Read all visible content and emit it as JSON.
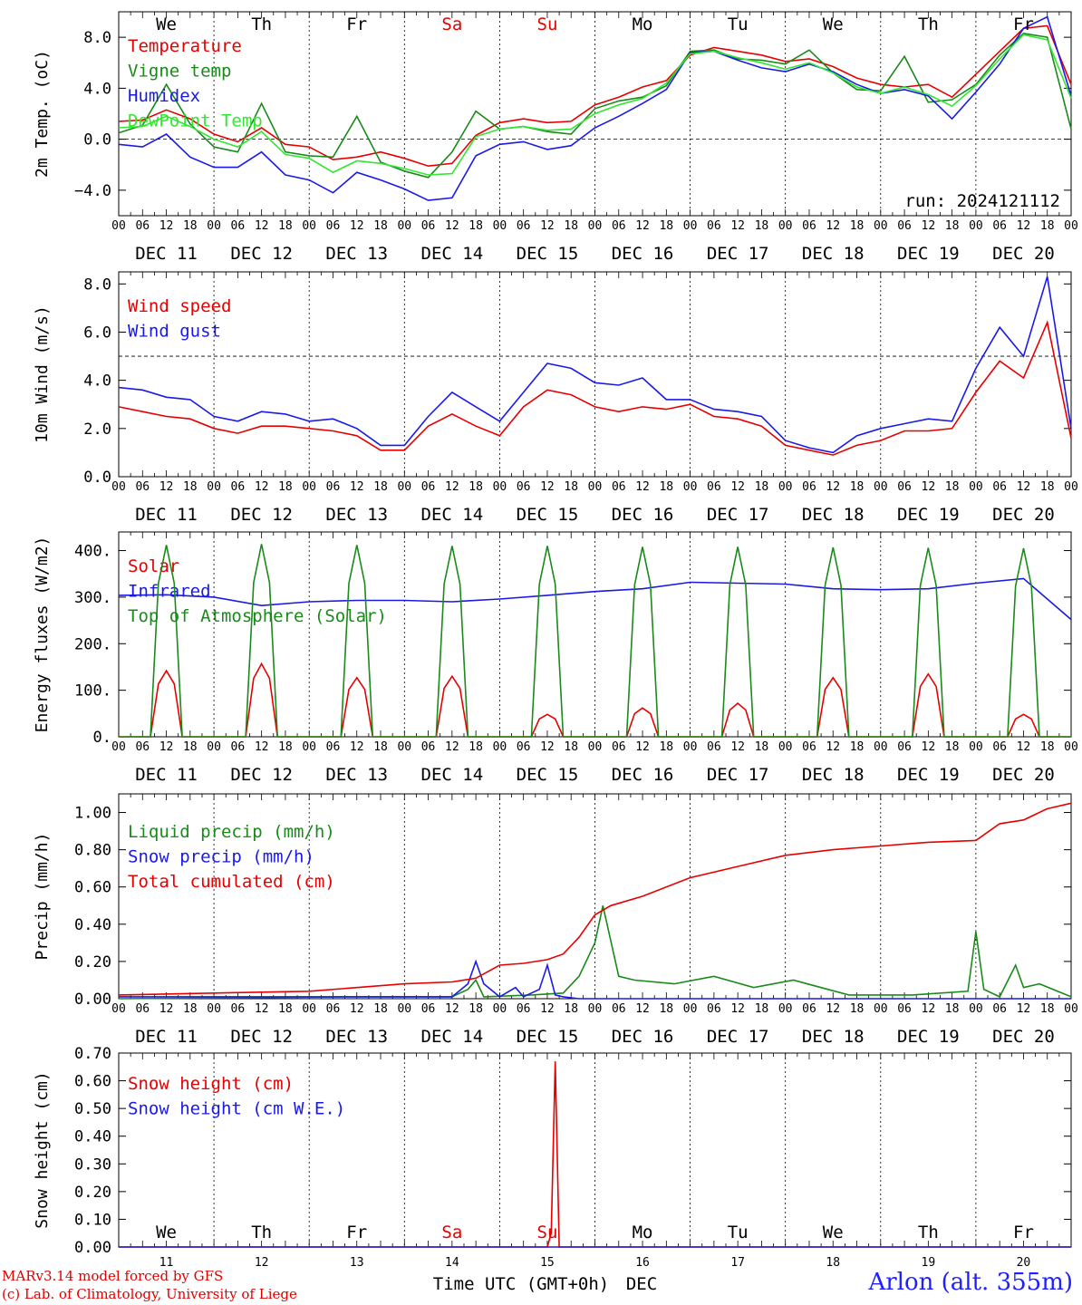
{
  "credits": {
    "model": "MARv3.14 model forced by GFS",
    "lab": "(c) Lab. of Climatology, University of Liege"
  },
  "station": "Arlon (alt. 355m)",
  "colors": {
    "red": "#e60000",
    "green": "#1a8a1a",
    "blue": "#1a1ae6",
    "lightgreen": "#33e633",
    "weekend": "#e60000",
    "axis": "#000000"
  },
  "days": {
    "weekday_labels": [
      "We",
      "Th",
      "Fr",
      "Sa",
      "Su",
      "Mo",
      "Tu",
      "We",
      "Th",
      "Fr"
    ],
    "weekend_flags": [
      false,
      false,
      false,
      true,
      true,
      false,
      false,
      false,
      false,
      false
    ],
    "date_labels": [
      "DEC 11",
      "DEC 12",
      "DEC 13",
      "DEC 14",
      "DEC 15",
      "DEC 16",
      "DEC 17",
      "DEC 18",
      "DEC 19",
      "DEC 20"
    ],
    "hour_ticks": [
      "00",
      "06",
      "12",
      "18"
    ],
    "final_hour_tick": "00",
    "day_numbers": [
      "11",
      "12",
      "13",
      "14",
      "15",
      "16",
      "17",
      "18",
      "19",
      "20"
    ]
  },
  "x_axis_title": "Time UTC (GMT+0h)",
  "x_axis_month": "DEC",
  "chart_data": [
    {
      "id": "temperature",
      "type": "line",
      "ylabel": "2m Temp. (oC)",
      "xlim_hours": [
        0,
        240
      ],
      "ylim": [
        -6.0,
        10.0
      ],
      "yticks": [
        -4.0,
        0.0,
        4.0,
        8.0
      ],
      "ytick_labels": [
        "−4.0",
        "0.0",
        "4.0",
        "8.0"
      ],
      "reference_line": 0.0,
      "annotation": "run: 2024121112",
      "series": [
        {
          "name": "Temperature",
          "color": "#e60000",
          "x": [
            0,
            6,
            12,
            18,
            24,
            30,
            36,
            42,
            48,
            54,
            60,
            66,
            72,
            78,
            84,
            90,
            96,
            102,
            108,
            114,
            120,
            126,
            132,
            138,
            144,
            150,
            156,
            162,
            168,
            174,
            180,
            186,
            192,
            198,
            204,
            210,
            216,
            222,
            228,
            234,
            240
          ],
          "y": [
            1.4,
            1.5,
            2.3,
            1.6,
            0.4,
            -0.2,
            0.9,
            -0.4,
            -0.6,
            -1.6,
            -1.4,
            -1.0,
            -1.5,
            -2.1,
            -1.9,
            0.3,
            1.3,
            1.6,
            1.3,
            1.4,
            2.7,
            3.3,
            4.1,
            4.6,
            6.6,
            7.2,
            6.9,
            6.6,
            6.1,
            6.3,
            5.7,
            4.8,
            4.3,
            4.1,
            4.3,
            3.3,
            5.1,
            6.9,
            8.7,
            8.9,
            4.3
          ]
        },
        {
          "name": "Vigne temp",
          "color": "#1a8a1a",
          "x": [
            0,
            6,
            12,
            18,
            24,
            30,
            36,
            42,
            48,
            54,
            60,
            66,
            72,
            78,
            84,
            90,
            96,
            102,
            108,
            114,
            120,
            126,
            132,
            138,
            144,
            150,
            156,
            162,
            168,
            174,
            180,
            186,
            192,
            198,
            204,
            210,
            216,
            222,
            228,
            234,
            240
          ],
          "y": [
            0.5,
            1.1,
            4.3,
            1.2,
            -0.6,
            -1.0,
            2.8,
            -1.0,
            -1.3,
            -1.4,
            1.8,
            -1.8,
            -2.5,
            -3.0,
            -1.0,
            2.2,
            0.8,
            1.0,
            0.6,
            0.4,
            2.4,
            3.0,
            3.3,
            4.2,
            6.9,
            7.0,
            6.3,
            6.2,
            5.9,
            7.0,
            5.2,
            3.9,
            3.8,
            6.5,
            2.9,
            3.1,
            4.3,
            6.6,
            8.3,
            8.0,
            0.8
          ]
        },
        {
          "name": "Humidex",
          "color": "#1a1ae6",
          "x": [
            0,
            6,
            12,
            18,
            24,
            30,
            36,
            42,
            48,
            54,
            60,
            66,
            72,
            78,
            84,
            90,
            96,
            102,
            108,
            114,
            120,
            126,
            132,
            138,
            144,
            150,
            156,
            162,
            168,
            174,
            180,
            186,
            192,
            198,
            204,
            210,
            216,
            222,
            228,
            234,
            240
          ],
          "y": [
            -0.4,
            -0.6,
            0.4,
            -1.4,
            -2.2,
            -2.2,
            -1.0,
            -2.8,
            -3.2,
            -4.2,
            -2.6,
            -3.2,
            -3.9,
            -4.8,
            -4.6,
            -1.3,
            -0.4,
            -0.2,
            -0.8,
            -0.5,
            0.9,
            1.8,
            2.8,
            3.9,
            6.8,
            6.9,
            6.2,
            5.6,
            5.3,
            5.9,
            5.3,
            4.3,
            3.6,
            3.9,
            3.4,
            1.6,
            3.7,
            5.9,
            8.7,
            9.6,
            3.4
          ]
        },
        {
          "name": "DewPoint Temp",
          "color": "#33e633",
          "x": [
            0,
            6,
            12,
            18,
            24,
            30,
            36,
            42,
            48,
            54,
            60,
            66,
            72,
            78,
            84,
            90,
            96,
            102,
            108,
            114,
            120,
            126,
            132,
            138,
            144,
            150,
            156,
            162,
            168,
            174,
            180,
            186,
            192,
            198,
            204,
            210,
            216,
            222,
            228,
            234,
            240
          ],
          "y": [
            0.9,
            1.0,
            1.8,
            1.0,
            0.0,
            -0.6,
            0.6,
            -1.2,
            -1.5,
            -2.6,
            -1.7,
            -1.9,
            -2.3,
            -2.8,
            -2.7,
            0.2,
            0.8,
            1.0,
            0.7,
            0.8,
            2.0,
            2.7,
            3.2,
            4.4,
            6.7,
            6.9,
            6.4,
            6.0,
            5.5,
            6.0,
            5.2,
            4.1,
            3.6,
            4.1,
            3.5,
            2.6,
            4.2,
            6.3,
            8.2,
            7.8,
            3.2
          ]
        }
      ]
    },
    {
      "id": "wind",
      "type": "line",
      "ylabel": "10m Wind (m/s)",
      "xlim_hours": [
        0,
        240
      ],
      "ylim": [
        0.0,
        8.5
      ],
      "yticks": [
        0.0,
        2.0,
        4.0,
        6.0,
        8.0
      ],
      "ytick_labels": [
        "0.0",
        "2.0",
        "4.0",
        "6.0",
        "8.0"
      ],
      "reference_line": 5.0,
      "series": [
        {
          "name": "Wind speed",
          "color": "#e60000",
          "x": [
            0,
            6,
            12,
            18,
            24,
            30,
            36,
            42,
            48,
            54,
            60,
            66,
            72,
            78,
            84,
            90,
            96,
            102,
            108,
            114,
            120,
            126,
            132,
            138,
            144,
            150,
            156,
            162,
            168,
            174,
            180,
            186,
            192,
            198,
            204,
            210,
            216,
            222,
            228,
            234,
            240
          ],
          "y": [
            2.9,
            2.7,
            2.5,
            2.4,
            2.0,
            1.8,
            2.1,
            2.1,
            2.0,
            1.9,
            1.7,
            1.1,
            1.1,
            2.1,
            2.6,
            2.1,
            1.7,
            2.9,
            3.6,
            3.4,
            2.9,
            2.7,
            2.9,
            2.8,
            3.0,
            2.5,
            2.4,
            2.1,
            1.3,
            1.1,
            0.9,
            1.3,
            1.5,
            1.9,
            1.9,
            2.0,
            3.5,
            4.8,
            4.1,
            6.4,
            1.6
          ]
        },
        {
          "name": "Wind gust",
          "color": "#1a1ae6",
          "x": [
            0,
            6,
            12,
            18,
            24,
            30,
            36,
            42,
            48,
            54,
            60,
            66,
            72,
            78,
            84,
            90,
            96,
            102,
            108,
            114,
            120,
            126,
            132,
            138,
            144,
            150,
            156,
            162,
            168,
            174,
            180,
            186,
            192,
            198,
            204,
            210,
            216,
            222,
            228,
            234,
            240
          ],
          "y": [
            3.7,
            3.6,
            3.3,
            3.2,
            2.5,
            2.3,
            2.7,
            2.6,
            2.3,
            2.4,
            2.0,
            1.3,
            1.3,
            2.5,
            3.5,
            2.9,
            2.3,
            3.5,
            4.7,
            4.5,
            3.9,
            3.8,
            4.1,
            3.2,
            3.2,
            2.8,
            2.7,
            2.5,
            1.5,
            1.2,
            1.0,
            1.7,
            2.0,
            2.2,
            2.4,
            2.3,
            4.5,
            6.2,
            5.0,
            8.3,
            2.0
          ]
        }
      ]
    },
    {
      "id": "energy",
      "type": "line",
      "ylabel": "Energy fluxes (W/m2)",
      "xlim_hours": [
        0,
        240
      ],
      "ylim": [
        0,
        440
      ],
      "yticks": [
        0,
        100,
        200,
        300,
        400
      ],
      "ytick_labels": [
        "0.",
        "100.",
        "200.",
        "300.",
        "400."
      ],
      "series": [
        {
          "name": "Solar",
          "color": "#e60000",
          "daily_peak": [
            142,
            157,
            127,
            130,
            48,
            62,
            72,
            127,
            135,
            48
          ],
          "peak_hour": 12,
          "hours_above_zero": [
            8,
            16
          ]
        },
        {
          "name": "Infrared",
          "color": "#1a1ae6",
          "x": [
            0,
            12,
            24,
            36,
            48,
            60,
            72,
            84,
            96,
            108,
            120,
            132,
            144,
            156,
            168,
            180,
            192,
            204,
            216,
            228,
            240
          ],
          "y": [
            304,
            305,
            300,
            282,
            290,
            293,
            293,
            290,
            296,
            304,
            312,
            318,
            332,
            330,
            328,
            318,
            316,
            318,
            330,
            340,
            252
          ]
        },
        {
          "name": "Top of Atmosphere (Solar)",
          "color": "#1a8a1a",
          "daily_peak": [
            412,
            414,
            412,
            410,
            410,
            408,
            408,
            407,
            406,
            405
          ],
          "peak_hour": 12,
          "hours_above_zero": [
            8,
            16
          ]
        }
      ]
    },
    {
      "id": "precip",
      "type": "line",
      "ylabel": "Precip (mm/h)",
      "xlim_hours": [
        0,
        240
      ],
      "ylim": [
        0,
        1.1
      ],
      "yticks": [
        0.0,
        0.2,
        0.4,
        0.6,
        0.8,
        1.0
      ],
      "ytick_labels": [
        "0.00",
        "0.20",
        "0.40",
        "0.60",
        "0.80",
        "1.00"
      ],
      "series": [
        {
          "name": "Liquid precip (mm/h)",
          "color": "#1a8a1a",
          "x": [
            0,
            60,
            84,
            88,
            90,
            92,
            104,
            112,
            116,
            120,
            122,
            126,
            130,
            140,
            150,
            160,
            170,
            184,
            200,
            214,
            216,
            218,
            222,
            226,
            228,
            232,
            240
          ],
          "y": [
            0.0,
            0.01,
            0.01,
            0.05,
            0.1,
            0.01,
            0.02,
            0.03,
            0.12,
            0.3,
            0.5,
            0.12,
            0.1,
            0.08,
            0.12,
            0.06,
            0.1,
            0.02,
            0.02,
            0.04,
            0.36,
            0.05,
            0.01,
            0.18,
            0.06,
            0.08,
            0.01
          ]
        },
        {
          "name": "Snow precip (mm/h)",
          "color": "#1a1ae6",
          "x": [
            0,
            84,
            88,
            90,
            92,
            96,
            100,
            102,
            106,
            108,
            110,
            112,
            116,
            240
          ],
          "y": [
            0.01,
            0.01,
            0.08,
            0.2,
            0.08,
            0.01,
            0.06,
            0.01,
            0.05,
            0.18,
            0.02,
            0.01,
            0.0,
            0.0
          ]
        },
        {
          "name": "Total cumulated (cm)",
          "color": "#e60000",
          "x": [
            0,
            24,
            48,
            60,
            72,
            84,
            90,
            96,
            102,
            108,
            112,
            116,
            120,
            124,
            132,
            144,
            156,
            168,
            180,
            192,
            204,
            216,
            222,
            228,
            234,
            240
          ],
          "y": [
            0.02,
            0.03,
            0.04,
            0.06,
            0.08,
            0.09,
            0.11,
            0.18,
            0.19,
            0.21,
            0.24,
            0.33,
            0.45,
            0.5,
            0.55,
            0.65,
            0.71,
            0.77,
            0.8,
            0.82,
            0.84,
            0.85,
            0.94,
            0.96,
            1.02,
            1.05
          ]
        }
      ]
    },
    {
      "id": "snow",
      "type": "line",
      "ylabel": "Snow height (cm)",
      "xlim_hours": [
        0,
        240
      ],
      "ylim": [
        0.0,
        0.7
      ],
      "yticks": [
        0.0,
        0.1,
        0.2,
        0.3,
        0.4,
        0.5,
        0.6,
        0.7
      ],
      "ytick_labels": [
        "0.00",
        "0.10",
        "0.20",
        "0.30",
        "0.40",
        "0.50",
        "0.60",
        "0.70"
      ],
      "series": [
        {
          "name": "Snow height (cm)",
          "color": "#e60000",
          "x": [
            0,
            108,
            109,
            110,
            111,
            240
          ],
          "y": [
            0,
            0,
            0.05,
            0.67,
            0,
            0
          ]
        },
        {
          "name": "Snow height (cm W.E.)",
          "color": "#1a1ae6",
          "x": [
            0,
            240
          ],
          "y": [
            0,
            0
          ]
        }
      ]
    }
  ]
}
